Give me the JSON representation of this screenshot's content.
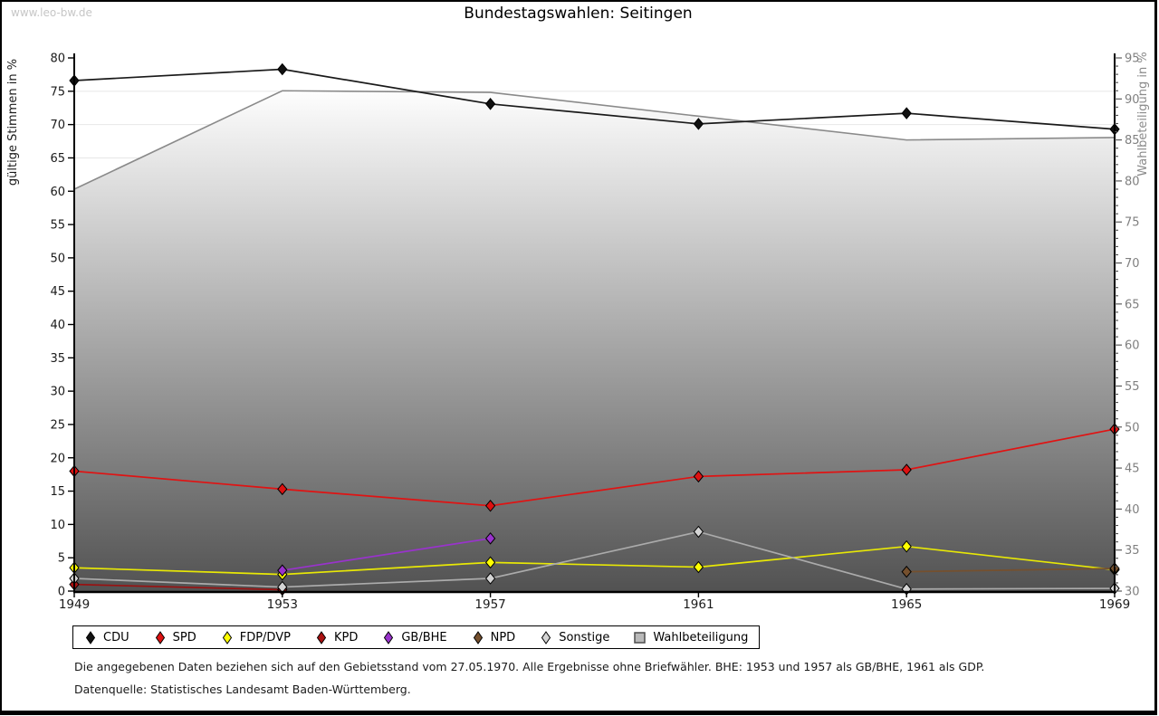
{
  "watermark": "www.leo-bw.de",
  "title": "Bundestagswahlen: Seitingen",
  "chart_data": {
    "type": "line",
    "title": "Bundestagswahlen: Seitingen",
    "x": [
      1949,
      1953,
      1957,
      1961,
      1965,
      1969
    ],
    "left_axis": {
      "label": "gültige Stimmen in %",
      "min": 0,
      "max": 80,
      "tick_step": 5
    },
    "right_axis": {
      "label": "Wahlbeteiligung in %",
      "min": 30,
      "max": 95,
      "tick_step": 5,
      "minor_tick_step": 1
    },
    "grid": "horizontal",
    "legend_position": "bottom",
    "series": [
      {
        "name": "CDU",
        "axis": "left",
        "kind": "line",
        "color": "#1a1a1a",
        "marker_fill": "#111111",
        "values": [
          76.6,
          78.3,
          73.1,
          70.1,
          71.7,
          69.3
        ]
      },
      {
        "name": "SPD",
        "axis": "left",
        "kind": "line",
        "color": "#e01313",
        "marker_fill": "#dd1111",
        "values": [
          18.0,
          15.3,
          12.8,
          17.2,
          18.2,
          24.3
        ]
      },
      {
        "name": "FDP/DVP",
        "axis": "left",
        "kind": "line",
        "color": "#e8e805",
        "marker_fill": "#ffff00",
        "values": [
          3.5,
          2.5,
          4.3,
          3.6,
          6.7,
          3.2
        ]
      },
      {
        "name": "KPD",
        "axis": "left",
        "kind": "line",
        "color": "#991111",
        "marker_fill": "#aa1111",
        "values": [
          1.0,
          0.2,
          null,
          null,
          null,
          null
        ]
      },
      {
        "name": "GB/BHE",
        "axis": "left",
        "kind": "line",
        "color": "#9933cc",
        "marker_fill": "#9933cc",
        "values": [
          null,
          3.1,
          7.9,
          null,
          null,
          null
        ]
      },
      {
        "name": "NPD",
        "axis": "left",
        "kind": "line",
        "color": "#75502e",
        "marker_fill": "#75502e",
        "values": [
          null,
          null,
          null,
          null,
          2.9,
          3.4
        ]
      },
      {
        "name": "Sonstige",
        "axis": "left",
        "kind": "line",
        "color": "#ababab",
        "marker_fill": "#d4d4d4",
        "values": [
          1.9,
          0.6,
          1.9,
          8.9,
          0.3,
          0.4
        ]
      },
      {
        "name": "Wahlbeteiligung",
        "axis": "right",
        "kind": "area",
        "color": "#8a8a8a",
        "marker_fill": "#bbbbbb",
        "values": [
          79.0,
          91.0,
          90.8,
          87.9,
          85.0,
          85.3
        ]
      }
    ]
  },
  "legend": {
    "items": [
      "CDU",
      "SPD",
      "FDP/DVP",
      "KPD",
      "GB/BHE",
      "NPD",
      "Sonstige",
      "Wahlbeteiligung"
    ]
  },
  "footnotes": [
    "Die angegebenen Daten beziehen sich auf den Gebietsstand vom 27.05.1970. Alle Ergebnisse ohne Briefwähler. BHE: 1953 und 1957 als GB/BHE, 1961 als GDP.",
    "Datenquelle: Statistisches Landesamt Baden-Württemberg."
  ]
}
